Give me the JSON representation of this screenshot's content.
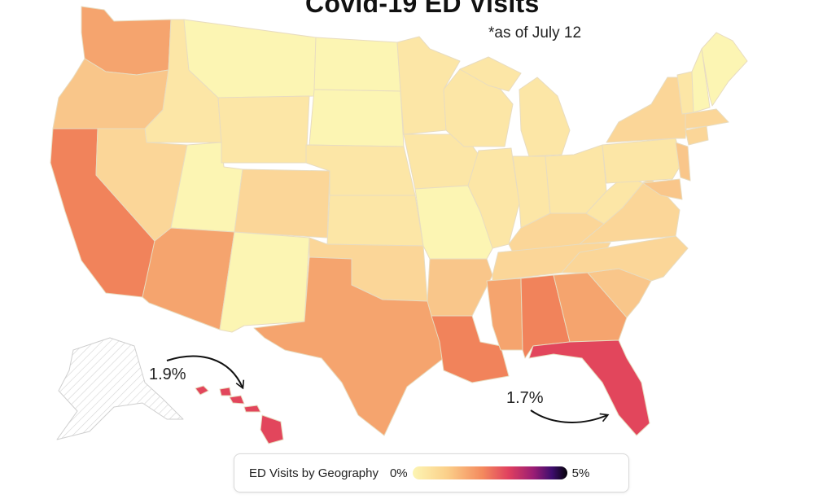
{
  "title": "Covid-19 ED Visits",
  "subtitle": "*as of July 12",
  "callouts": {
    "hawaii": "1.9%",
    "florida": "1.7%"
  },
  "legend": {
    "label": "ED Visits by Geography",
    "min": "0%",
    "max": "5%",
    "colors": [
      "#fcf5b3",
      "#fbd08a",
      "#f48a5e",
      "#e0405f",
      "#9b1d74",
      "#3e0d6e",
      "#050308"
    ]
  },
  "colors": {
    "lowest": "#fcf5b3",
    "low": "#fce6a6",
    "low_mid": "#fbd698",
    "mid": "#f9c68a",
    "mid_high": "#f5a46e",
    "high": "#f1835b",
    "highest": "#e2465c",
    "no_data_hatch": "#d8d8d8",
    "border": "#d9c9a6"
  }
}
